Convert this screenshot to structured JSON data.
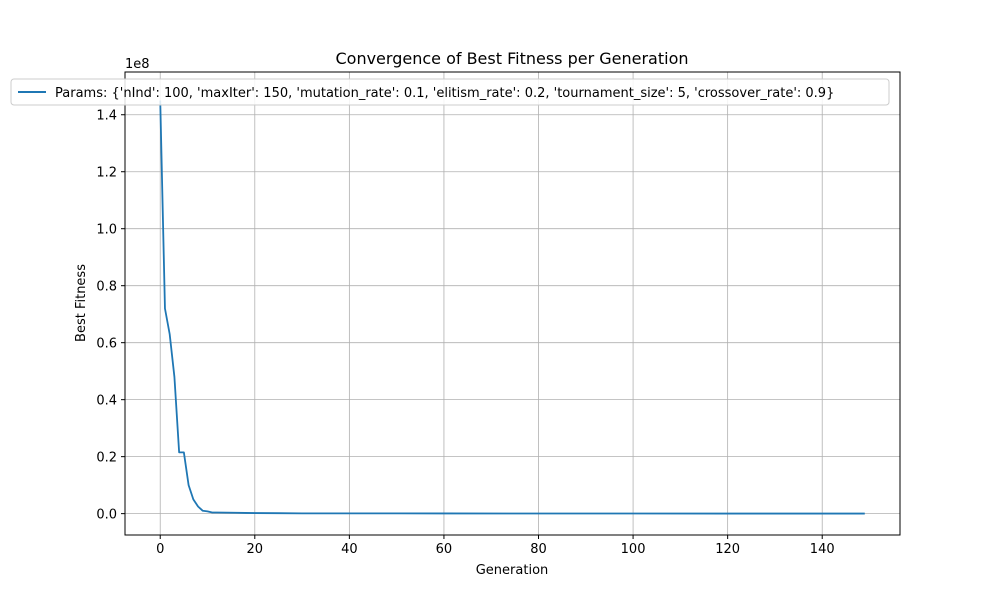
{
  "chart_data": {
    "type": "line",
    "title": "Convergence of Best Fitness per Generation",
    "xlabel": "Generation",
    "ylabel": "Best Fitness",
    "y_multiplier_label": "1e8",
    "xlim": [
      -7.45,
      156.45
    ],
    "ylim": [
      -0.075,
      1.55
    ],
    "x_ticks": [
      0,
      20,
      40,
      60,
      80,
      100,
      120,
      140
    ],
    "y_ticks": [
      0.0,
      0.2,
      0.4,
      0.6,
      0.8,
      1.0,
      1.2,
      1.4
    ],
    "y_tick_labels": [
      "0.0",
      "0.2",
      "0.4",
      "0.6",
      "0.8",
      "1.0",
      "1.2",
      "1.4"
    ],
    "grid": true,
    "legend_position": "top",
    "series": [
      {
        "name": "Params: {'nInd': 100, 'maxIter': 150, 'mutation_rate': 0.1, 'elitism_rate': 0.2, 'tournament_size': 5, 'crossover_rate': 0.9}",
        "color": "#1f77b4",
        "x": [
          0,
          1,
          2,
          3,
          4,
          5,
          6,
          7,
          8,
          9,
          10,
          11,
          12,
          14,
          16,
          18,
          20,
          25,
          30,
          40,
          50,
          60,
          80,
          100,
          120,
          149
        ],
        "y": [
          1.45,
          0.72,
          0.63,
          0.48,
          0.215,
          0.215,
          0.1,
          0.05,
          0.025,
          0.01,
          0.008,
          0.004,
          0.004,
          0.0035,
          0.003,
          0.0025,
          0.002,
          0.0015,
          0.001,
          0.001,
          0.0008,
          0.0006,
          0.0005,
          0.0004,
          0.0003,
          0.0003
        ]
      }
    ]
  }
}
